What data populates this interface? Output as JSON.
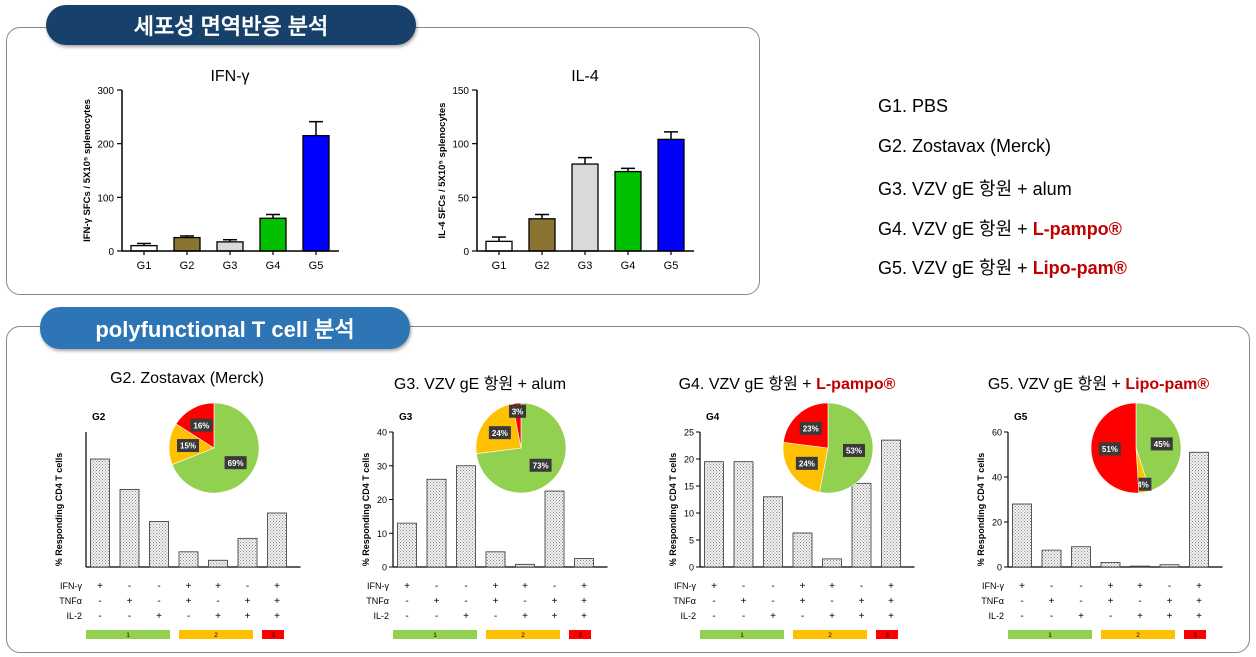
{
  "top_section": {
    "title": "세포성 면역반응 분석",
    "pill_color": "#17406a"
  },
  "bottom_section": {
    "title": "polyfunctional T cell 분석",
    "pill_color": "#2e75b6"
  },
  "legend": [
    {
      "prefix": "G1. PBS",
      "highlight": ""
    },
    {
      "prefix": "G2. Zostavax (Merck)",
      "highlight": ""
    },
    {
      "prefix": "G3. VZV gE 항원 + alum",
      "highlight": ""
    },
    {
      "prefix": "G4. VZV gE 항원 + ",
      "highlight": "L-pampo®"
    },
    {
      "prefix": "G5. VZV gE 항원 + ",
      "highlight": "Lipo-pam®"
    }
  ],
  "chart_data": [
    {
      "type": "bar",
      "title": "IFN-γ",
      "ylabel": "IFN-γ SFCs / 5X10⁵ splenocytes",
      "categories": [
        "G1",
        "G2",
        "G3",
        "G4",
        "G5"
      ],
      "values": [
        10,
        25,
        17,
        61,
        215
      ],
      "errors": [
        4,
        3,
        4,
        7,
        26
      ],
      "colors": [
        "#ffffff",
        "#8b7332",
        "#d9d9d9",
        "#00c000",
        "#0000ff"
      ],
      "ylim": [
        0,
        300
      ],
      "yticks": [
        0,
        100,
        200,
        300
      ]
    },
    {
      "type": "bar",
      "title": "IL-4",
      "ylabel": "IL-4 SFCs / 5X10⁵ splenocytes",
      "categories": [
        "G1",
        "G2",
        "G3",
        "G4",
        "G5"
      ],
      "values": [
        9,
        30,
        81,
        74,
        104
      ],
      "errors": [
        4,
        4,
        6,
        3,
        7
      ],
      "colors": [
        "#ffffff",
        "#8b7332",
        "#d9d9d9",
        "#00c000",
        "#0000ff"
      ],
      "ylim": [
        0,
        150
      ],
      "yticks": [
        0,
        50,
        100,
        150
      ]
    },
    {
      "type": "bar",
      "title_prefix": "G2. Zostavax (Merck)",
      "title_highlight": "",
      "panel_label": "G2",
      "ylabel": "% Responding CD4 T cells",
      "values": [
        32,
        23,
        13.5,
        4.5,
        2,
        8.5,
        16
      ],
      "ylim": [
        0,
        40
      ],
      "yticks": [],
      "pie": [
        {
          "value": 69,
          "label": "69%",
          "color": "#92d050"
        },
        {
          "value": 15,
          "label": "15%",
          "color": "#ffc000"
        },
        {
          "value": 16,
          "label": "16%",
          "color": "#ff0000"
        }
      ]
    },
    {
      "type": "bar",
      "title_prefix": "G3. VZV gE 항원 + alum",
      "title_highlight": "",
      "panel_label": "G3",
      "ylabel": "% Responding CD4 T cells",
      "values": [
        13,
        26,
        30,
        4.5,
        0.8,
        22.5,
        2.5
      ],
      "ylim": [
        0,
        40
      ],
      "yticks": [
        0,
        10,
        20,
        30,
        40
      ],
      "pie": [
        {
          "value": 73,
          "label": "73%",
          "color": "#92d050"
        },
        {
          "value": 24,
          "label": "24%",
          "color": "#ffc000"
        },
        {
          "value": 3,
          "label": "3%",
          "color": "#ff0000"
        }
      ]
    },
    {
      "type": "bar",
      "title_prefix": "G4. VZV gE 항원 + ",
      "title_highlight": "L-pampo®",
      "panel_label": "G4",
      "ylabel": "% Responding CD4 T cells",
      "values": [
        19.5,
        19.5,
        13,
        6.3,
        1.5,
        15.5,
        23.5
      ],
      "ylim": [
        0,
        25
      ],
      "yticks": [
        0,
        5,
        10,
        15,
        20,
        25
      ],
      "pie": [
        {
          "value": 53,
          "label": "53%",
          "color": "#92d050"
        },
        {
          "value": 24,
          "label": "24%",
          "color": "#ffc000"
        },
        {
          "value": 23,
          "label": "23%",
          "color": "#ff0000"
        }
      ]
    },
    {
      "type": "bar",
      "title_prefix": "G5. VZV gE 항원 + ",
      "title_highlight": "Lipo-pam®",
      "panel_label": "G5",
      "ylabel": "% Responding CD4 T cells",
      "values": [
        28,
        7.5,
        9,
        2,
        0.4,
        1,
        51
      ],
      "ylim": [
        0,
        60
      ],
      "yticks": [
        0,
        20,
        40,
        60
      ],
      "pie": [
        {
          "value": 45,
          "label": "45%",
          "color": "#92d050"
        },
        {
          "value": 4,
          "label": "4%",
          "color": "#ffc000"
        },
        {
          "value": 51,
          "label": "51%",
          "color": "#ff0000"
        }
      ]
    }
  ],
  "cytokine_rows": {
    "labels": [
      "IFN-γ",
      "TNFα",
      "IL-2"
    ],
    "signs": [
      [
        "+",
        "-",
        "-",
        "+",
        "+",
        "-",
        "+"
      ],
      [
        "-",
        "+",
        "-",
        "+",
        "-",
        "+",
        "+"
      ],
      [
        "-",
        "-",
        "+",
        "-",
        "+",
        "+",
        "+"
      ]
    ]
  },
  "function_groups": [
    {
      "label": "1",
      "color": "#92d050"
    },
    {
      "label": "2",
      "color": "#ffc000"
    },
    {
      "label": "3",
      "color": "#ff0000"
    }
  ]
}
